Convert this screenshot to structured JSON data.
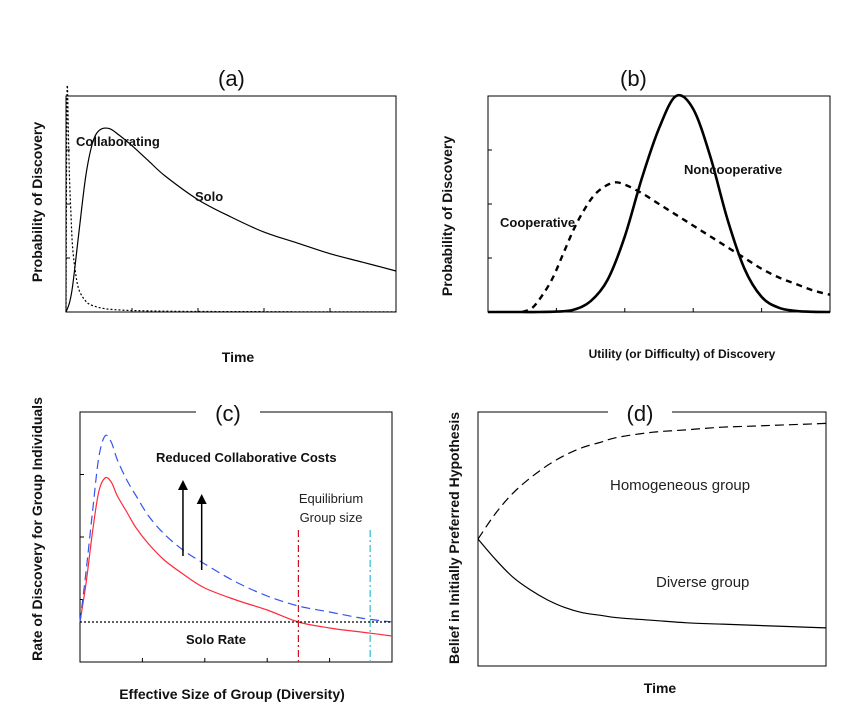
{
  "chart_data": [
    {
      "id": "a",
      "type": "line",
      "panel_label": "(a)",
      "xlabel": "Time",
      "ylabel": "Probability of Discovery",
      "grid": false,
      "series": [
        {
          "name": "Collaborating",
          "style": "dotted",
          "color": "#000000",
          "x": [
            0.0,
            0.2,
            0.4,
            0.7,
            1,
            1.5,
            2,
            3,
            4,
            6,
            8,
            12,
            18,
            25,
            35,
            50,
            70,
            100
          ],
          "y": [
            0.0,
            0.8,
            1.05,
            0.85,
            0.65,
            0.45,
            0.3,
            0.17,
            0.1,
            0.05,
            0.03,
            0.015,
            0.008,
            0.005,
            0.003,
            0.002,
            0.001,
            0.001
          ]
        },
        {
          "name": "Solo",
          "style": "solid",
          "color": "#000000",
          "x": [
            0,
            1,
            2,
            4,
            6,
            8,
            10,
            13,
            16,
            20,
            25,
            30,
            40,
            50,
            60,
            70,
            80,
            90,
            100
          ],
          "y": [
            0.0,
            0.04,
            0.12,
            0.38,
            0.63,
            0.78,
            0.84,
            0.85,
            0.82,
            0.77,
            0.7,
            0.63,
            0.52,
            0.44,
            0.37,
            0.32,
            0.27,
            0.23,
            0.19
          ]
        }
      ],
      "xlim": [
        0,
        100
      ],
      "ylim": [
        0,
        1.0
      ]
    },
    {
      "id": "b",
      "type": "line",
      "panel_label": "(b)",
      "xlabel": "Utility (or Difficulty) of Discovery",
      "ylabel": "Probability of  Discovery",
      "grid": false,
      "series": [
        {
          "name": "Noncooperative",
          "style": "solid-thick",
          "color": "#000000",
          "x": [
            0,
            5,
            10,
            15,
            20,
            25,
            30,
            35,
            40,
            45,
            50,
            55,
            60,
            65,
            70,
            75,
            80,
            85,
            90,
            95,
            100
          ],
          "y": [
            0.0,
            0.0,
            0.0,
            0.0,
            0.002,
            0.01,
            0.05,
            0.15,
            0.35,
            0.62,
            0.85,
            1.0,
            0.94,
            0.72,
            0.43,
            0.2,
            0.07,
            0.02,
            0.005,
            0.001,
            0.0
          ]
        },
        {
          "name": "Cooperative",
          "style": "dashed-thick",
          "color": "#000000",
          "x": [
            10,
            13,
            16,
            19,
            22,
            25,
            28,
            31,
            34,
            37,
            40,
            45,
            50,
            55,
            60,
            65,
            70,
            75,
            80,
            85,
            90,
            95,
            100
          ],
          "y": [
            0.0,
            0.02,
            0.08,
            0.16,
            0.27,
            0.38,
            0.47,
            0.54,
            0.58,
            0.6,
            0.59,
            0.55,
            0.5,
            0.45,
            0.4,
            0.35,
            0.3,
            0.25,
            0.2,
            0.16,
            0.13,
            0.1,
            0.08
          ]
        }
      ],
      "xlim": [
        0,
        100
      ],
      "ylim": [
        0,
        1.0
      ]
    },
    {
      "id": "c",
      "type": "line",
      "panel_label": "(c)",
      "xlabel": "Effective Size of Group (Diversity)",
      "ylabel": "Rate of Discovery for Group Individuals",
      "grid": false,
      "annotations": [
        "Reduced Collaborative Costs",
        "Equilibrium",
        "Group size",
        "Solo Rate"
      ],
      "series": [
        {
          "name": "",
          "style": "solid",
          "color": "#ff2a3a",
          "x": [
            0,
            2,
            4,
            6,
            8,
            10,
            12,
            15,
            18,
            22,
            27,
            33,
            40,
            50,
            60,
            70,
            80,
            90,
            100
          ],
          "y": [
            0.0,
            0.2,
            0.45,
            0.65,
            0.72,
            0.7,
            0.63,
            0.55,
            0.47,
            0.39,
            0.31,
            0.24,
            0.17,
            0.11,
            0.06,
            0.0,
            -0.03,
            -0.05,
            -0.07
          ]
        },
        {
          "name": "",
          "style": "dashed",
          "color": "#3355ee",
          "x": [
            0,
            2,
            4,
            6,
            8,
            10,
            12,
            15,
            18,
            22,
            27,
            33,
            40,
            50,
            60,
            70,
            80,
            90,
            100
          ],
          "y": [
            0.0,
            0.26,
            0.55,
            0.82,
            0.93,
            0.9,
            0.81,
            0.71,
            0.63,
            0.53,
            0.44,
            0.36,
            0.29,
            0.2,
            0.13,
            0.08,
            0.05,
            0.02,
            0.0
          ]
        },
        {
          "name": "",
          "style": "dotted",
          "color": "#000000",
          "x": [
            0,
            100
          ],
          "y": [
            0.0,
            0.0
          ]
        }
      ],
      "vlines": [
        {
          "x": 70,
          "color": "#cc1122",
          "style": "dash-dot"
        },
        {
          "x": 93,
          "color": "#33bbcc",
          "style": "dash-dot"
        }
      ],
      "arrows": [
        {
          "x": 33,
          "y_from": 0.33,
          "y_to": 0.71
        },
        {
          "x": 39,
          "y_from": 0.26,
          "y_to": 0.64
        }
      ],
      "xlim": [
        0,
        100
      ],
      "ylim": [
        -0.2,
        1.05
      ]
    },
    {
      "id": "d",
      "type": "line",
      "panel_label": "(d)",
      "xlabel": "Time",
      "ylabel": "Belief in Initially Preferred Hypothesis",
      "grid": false,
      "series": [
        {
          "name": "Homogeneous group",
          "style": "dashed",
          "color": "#000000",
          "x": [
            0,
            5,
            10,
            15,
            20,
            25,
            30,
            35,
            40,
            50,
            60,
            70,
            80,
            90,
            100
          ],
          "y": [
            0.5,
            0.6,
            0.68,
            0.74,
            0.79,
            0.83,
            0.86,
            0.88,
            0.9,
            0.92,
            0.93,
            0.94,
            0.945,
            0.95,
            0.955
          ]
        },
        {
          "name": "Diverse group",
          "style": "solid",
          "color": "#000000",
          "x": [
            0,
            5,
            10,
            15,
            20,
            25,
            30,
            35,
            40,
            50,
            60,
            70,
            80,
            90,
            100
          ],
          "y": [
            0.5,
            0.42,
            0.35,
            0.3,
            0.26,
            0.23,
            0.21,
            0.2,
            0.19,
            0.18,
            0.17,
            0.165,
            0.16,
            0.155,
            0.15
          ]
        }
      ],
      "xlim": [
        0,
        100
      ],
      "ylim": [
        0,
        1.0
      ]
    }
  ]
}
